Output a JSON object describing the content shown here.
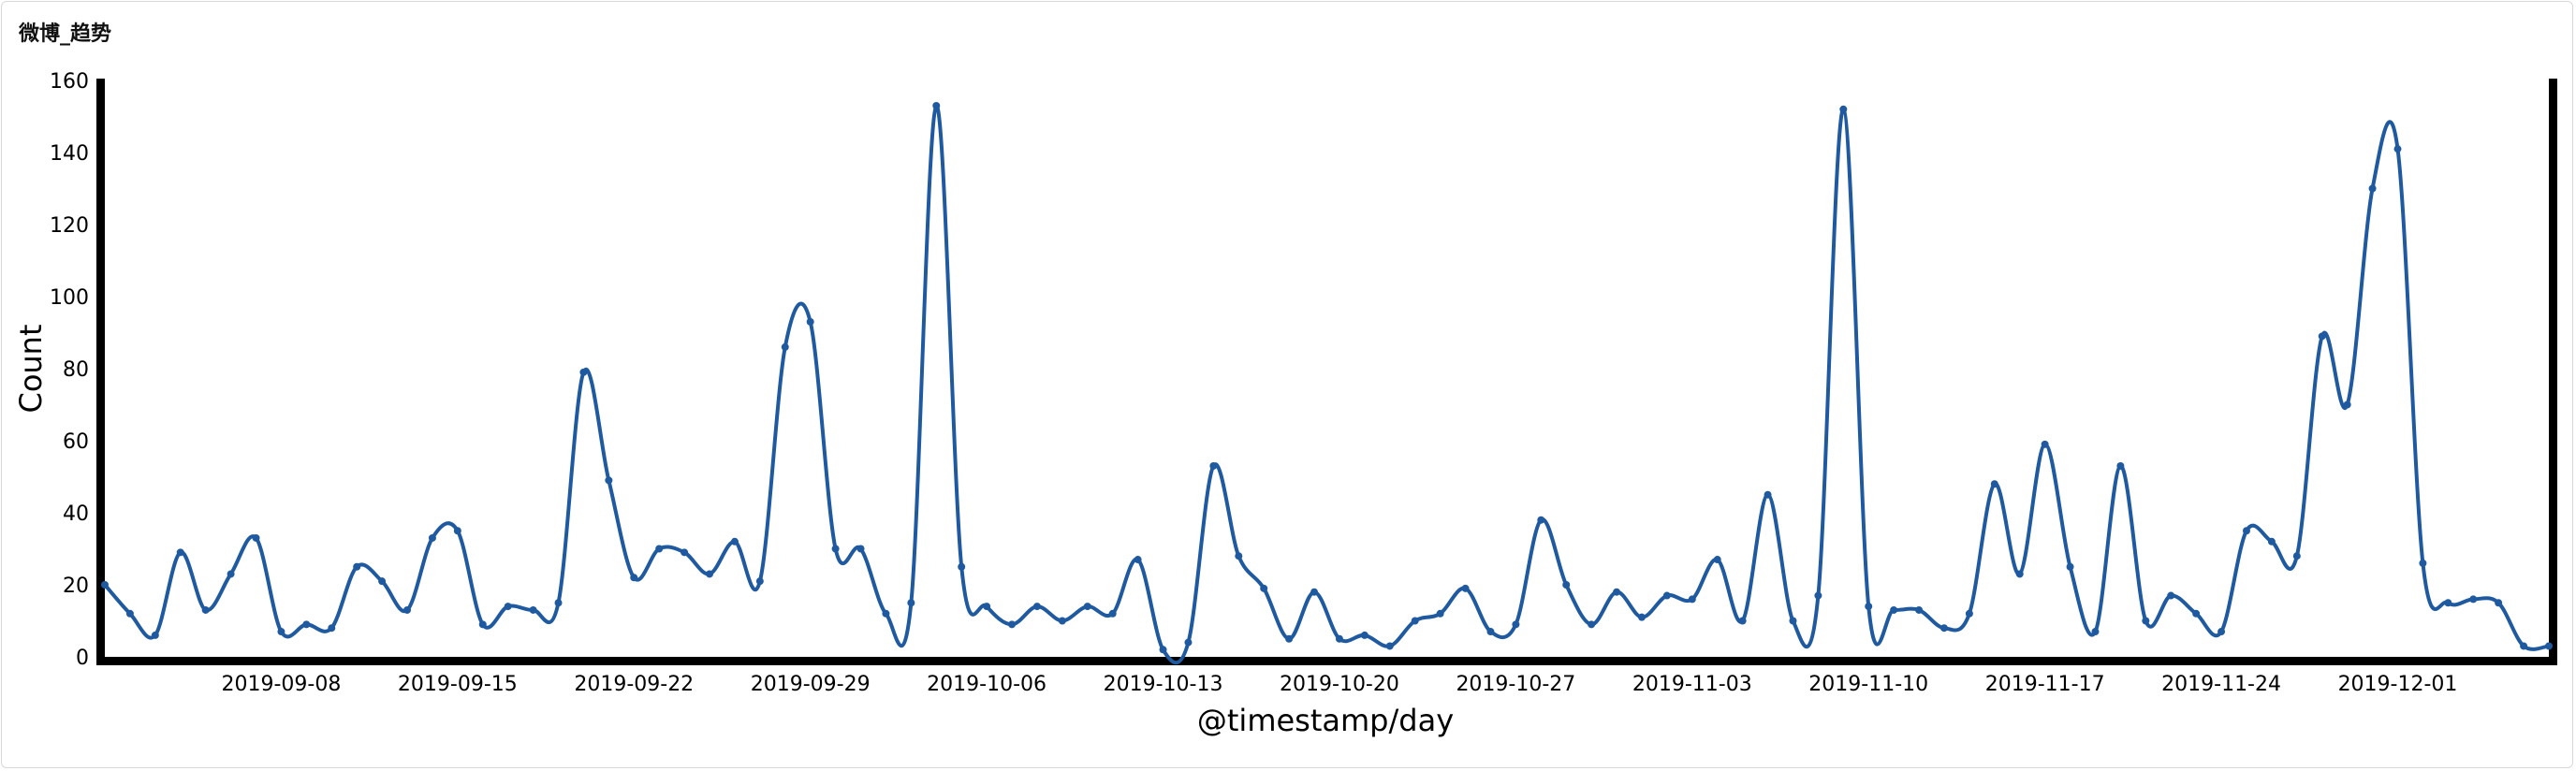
{
  "panel": {
    "title": "微博_趋势"
  },
  "chart_data": {
    "type": "line",
    "xlabel": "@timestamp/day",
    "ylabel": "Count",
    "ylim": [
      0,
      160
    ],
    "xlim": [
      "2019-09-01",
      "2019-12-07"
    ],
    "yticks": [
      0,
      20,
      40,
      60,
      80,
      100,
      120,
      140,
      160
    ],
    "xticks": [
      "2019-09-08",
      "2019-09-15",
      "2019-09-22",
      "2019-09-29",
      "2019-10-06",
      "2019-10-13",
      "2019-10-20",
      "2019-10-27",
      "2019-11-03",
      "2019-11-10",
      "2019-11-17",
      "2019-11-24",
      "2019-12-01"
    ],
    "line_color": "#1f5aa0",
    "grid": false,
    "series": [
      {
        "x": [
          "2019-09-01",
          "2019-09-02",
          "2019-09-03",
          "2019-09-04",
          "2019-09-05",
          "2019-09-06",
          "2019-09-07",
          "2019-09-08",
          "2019-09-09",
          "2019-09-10",
          "2019-09-11",
          "2019-09-12",
          "2019-09-13",
          "2019-09-14",
          "2019-09-15",
          "2019-09-16",
          "2019-09-17",
          "2019-09-18",
          "2019-09-19",
          "2019-09-20",
          "2019-09-21",
          "2019-09-22",
          "2019-09-23",
          "2019-09-24",
          "2019-09-25",
          "2019-09-26",
          "2019-09-27",
          "2019-09-28",
          "2019-09-29",
          "2019-09-30",
          "2019-10-01",
          "2019-10-02",
          "2019-10-03",
          "2019-10-04",
          "2019-10-05",
          "2019-10-06",
          "2019-10-07",
          "2019-10-08",
          "2019-10-09",
          "2019-10-10",
          "2019-10-11",
          "2019-10-12",
          "2019-10-13",
          "2019-10-14",
          "2019-10-15",
          "2019-10-16",
          "2019-10-17",
          "2019-10-18",
          "2019-10-19",
          "2019-10-20",
          "2019-10-21",
          "2019-10-22",
          "2019-10-23",
          "2019-10-24",
          "2019-10-25",
          "2019-10-26",
          "2019-10-27",
          "2019-10-28",
          "2019-10-29",
          "2019-10-30",
          "2019-10-31",
          "2019-11-01",
          "2019-11-02",
          "2019-11-03",
          "2019-11-04",
          "2019-11-05",
          "2019-11-06",
          "2019-11-07",
          "2019-11-08",
          "2019-11-09",
          "2019-11-10",
          "2019-11-11",
          "2019-11-12",
          "2019-11-13",
          "2019-11-14",
          "2019-11-15",
          "2019-11-16",
          "2019-11-17",
          "2019-11-18",
          "2019-11-19",
          "2019-11-20",
          "2019-11-21",
          "2019-11-22",
          "2019-11-23",
          "2019-11-24",
          "2019-11-25",
          "2019-11-26",
          "2019-11-27",
          "2019-11-28",
          "2019-11-29",
          "2019-11-30",
          "2019-12-01",
          "2019-12-02",
          "2019-12-03",
          "2019-12-04",
          "2019-12-05",
          "2019-12-06",
          "2019-12-07"
        ],
        "values": [
          20,
          12,
          6,
          29,
          13,
          23,
          33,
          7,
          9,
          8,
          25,
          21,
          13,
          33,
          35,
          9,
          14,
          13,
          15,
          79,
          49,
          22,
          30,
          29,
          23,
          32,
          21,
          86,
          93,
          30,
          30,
          12,
          15,
          153,
          25,
          14,
          9,
          14,
          10,
          14,
          12,
          27,
          2,
          4,
          53,
          28,
          19,
          5,
          18,
          5,
          6,
          3,
          10,
          12,
          19,
          7,
          9,
          38,
          20,
          9,
          18,
          11,
          17,
          16,
          27,
          10,
          45,
          10,
          17,
          152,
          14,
          13,
          13,
          8,
          12,
          48,
          23,
          59,
          25,
          7,
          53,
          10,
          17,
          12,
          7,
          35,
          32,
          28,
          89,
          70,
          130,
          141,
          26,
          15,
          16,
          15,
          3,
          3
        ]
      }
    ]
  }
}
